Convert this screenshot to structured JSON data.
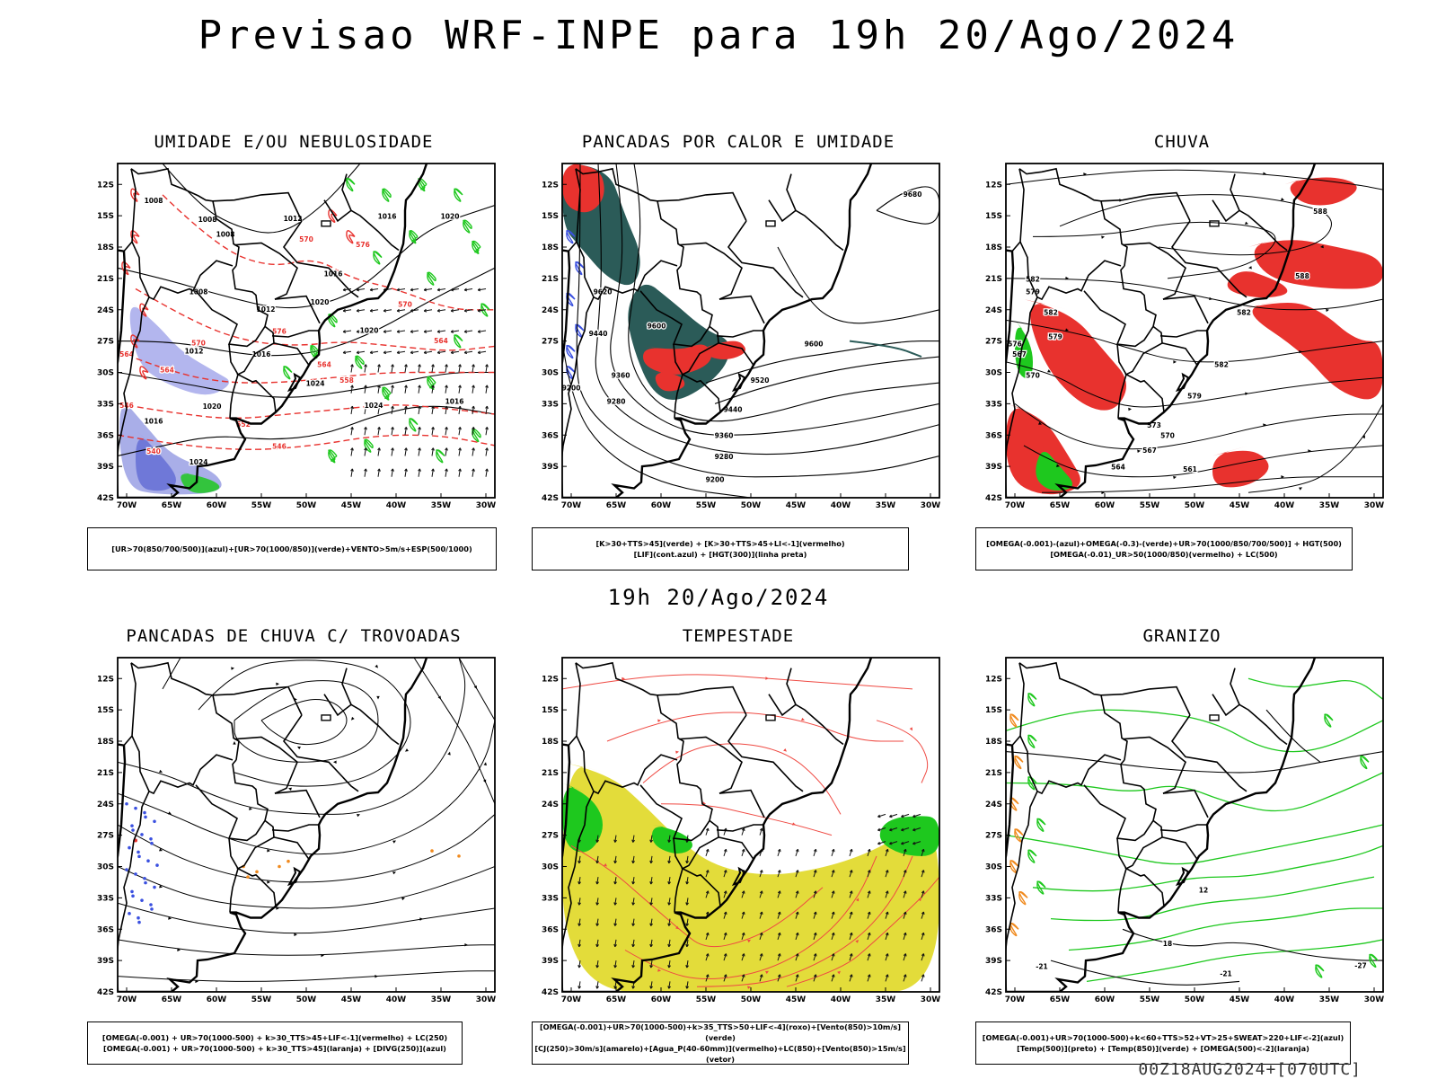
{
  "page": {
    "title": "Previsao WRF-INPE  para 19h 20/Ago/2024",
    "subtitle": "19h 20/Ago/2024",
    "footer": "00Z18AUG2024+[070UTC]"
  },
  "axes": {
    "lat_ticks": [
      "12S",
      "15S",
      "18S",
      "21S",
      "24S",
      "27S",
      "30S",
      "33S",
      "36S",
      "39S",
      "42S"
    ],
    "lon_ticks": [
      "70W",
      "65W",
      "60W",
      "55W",
      "50W",
      "45W",
      "40W",
      "35W",
      "30W"
    ],
    "lat_range": [
      -42,
      -10
    ],
    "lon_range": [
      -71,
      -29
    ]
  },
  "colors": {
    "red": "#e8322e",
    "green": "#1ec81e",
    "blue": "#3a50e0",
    "lightblue": "#a9aee8",
    "darkteal": "#2b5b58",
    "yellow": "#e3dc3a",
    "orange": "#f08a1e"
  },
  "panels": [
    {
      "title": "UMIDADE E/OU NEBULOSIDADE",
      "legend": [
        "[UR>70(850/700/500)](azul)+[UR>70(1000/850)](verde)+VENTO>5m/s+ESP(500/1000)"
      ],
      "contour_labels": [
        {
          "text": "1008",
          "lon": -67,
          "lat": -13.8
        },
        {
          "text": "1008",
          "lon": -61,
          "lat": -15.6
        },
        {
          "text": "1008",
          "lon": -59,
          "lat": -17
        },
        {
          "text": "1012",
          "lon": -51.5,
          "lat": -15.5
        },
        {
          "text": "1016",
          "lon": -41,
          "lat": -15.3
        },
        {
          "text": "1020",
          "lon": -34,
          "lat": -15.3
        },
        {
          "text": "1016",
          "lon": -47,
          "lat": -20.8
        },
        {
          "text": "1008",
          "lon": -62,
          "lat": -22.5
        },
        {
          "text": "1012",
          "lon": -54.5,
          "lat": -24.2
        },
        {
          "text": "1020",
          "lon": -48.5,
          "lat": -23.5
        },
        {
          "text": "1020",
          "lon": -43,
          "lat": -26.2
        },
        {
          "text": "1012",
          "lon": -62.5,
          "lat": -28.2
        },
        {
          "text": "1016",
          "lon": -55,
          "lat": -28.5
        },
        {
          "text": "1024",
          "lon": -49,
          "lat": -31.3
        },
        {
          "text": "1020",
          "lon": -60.5,
          "lat": -33.5
        },
        {
          "text": "1016",
          "lon": -67,
          "lat": -34.9
        },
        {
          "text": "1024",
          "lon": -42.5,
          "lat": -33.4
        },
        {
          "text": "1016",
          "lon": -33.5,
          "lat": -33
        },
        {
          "text": "1024",
          "lon": -62,
          "lat": -38.8
        }
      ],
      "thickness_labels": [
        {
          "text": "570",
          "lon": -50,
          "lat": -17.5
        },
        {
          "text": "576",
          "lon": -43.7,
          "lat": -18
        },
        {
          "text": "570",
          "lon": -39,
          "lat": -23.7
        },
        {
          "text": "576",
          "lon": -53,
          "lat": -26.3
        },
        {
          "text": "570",
          "lon": -62,
          "lat": -27.4
        },
        {
          "text": "564",
          "lon": -65.5,
          "lat": -30
        },
        {
          "text": "564",
          "lon": -48,
          "lat": -29.5
        },
        {
          "text": "558",
          "lon": -45.5,
          "lat": -31
        },
        {
          "text": "564",
          "lon": -35,
          "lat": -27.2
        },
        {
          "text": "552",
          "lon": -57,
          "lat": -35.2
        },
        {
          "text": "546",
          "lon": -53,
          "lat": -37.3
        },
        {
          "text": "540",
          "lon": -67,
          "lat": -37.8
        },
        {
          "text": "546",
          "lon": -70,
          "lat": -33.4
        },
        {
          "text": "564",
          "lon": -70,
          "lat": -28.5
        }
      ]
    },
    {
      "title": "PANCADAS POR CALOR E UMIDADE",
      "legend": [
        "[K>30+TTS>45](verde) + [K>30+TTS>45+LI<-1](vermelho)",
        "[LIF](cont.azul) + [HGT(300)](linha preta)"
      ],
      "contour_labels": [
        {
          "text": "9680",
          "lon": -32,
          "lat": -13.2
        },
        {
          "text": "9620",
          "lon": -66.5,
          "lat": -22.5
        },
        {
          "text": "9600",
          "lon": -60.5,
          "lat": -25.8
        },
        {
          "text": "9440",
          "lon": -67,
          "lat": -26.5
        },
        {
          "text": "9600",
          "lon": -43,
          "lat": -27.5
        },
        {
          "text": "9360",
          "lon": -64.5,
          "lat": -30.5
        },
        {
          "text": "9520",
          "lon": -49,
          "lat": -31
        },
        {
          "text": "9200",
          "lon": -70,
          "lat": -31.7
        },
        {
          "text": "9280",
          "lon": -65,
          "lat": -33
        },
        {
          "text": "9440",
          "lon": -52,
          "lat": -33.8
        },
        {
          "text": "9360",
          "lon": -53,
          "lat": -36.3
        },
        {
          "text": "9280",
          "lon": -53,
          "lat": -38.3
        },
        {
          "text": "9200",
          "lon": -54,
          "lat": -40.5
        }
      ]
    },
    {
      "title": "CHUVA",
      "legend": [
        "[OMEGA(-0.001)-(azul)+OMEGA(-0.3)-(verde)+UR>70(1000/850/700/500)] + HGT(500)",
        "[OMEGA(-0.01)_UR>50(1000/850)(vermelho) + LC(500)"
      ],
      "contour_labels": [
        {
          "text": "588",
          "lon": -36,
          "lat": -14.8
        },
        {
          "text": "588",
          "lon": -38,
          "lat": -21
        },
        {
          "text": "582",
          "lon": -68,
          "lat": -21.3
        },
        {
          "text": "582",
          "lon": -44.5,
          "lat": -24.5
        },
        {
          "text": "579",
          "lon": -68,
          "lat": -22.5
        },
        {
          "text": "582",
          "lon": -66,
          "lat": -24.5
        },
        {
          "text": "579",
          "lon": -65.5,
          "lat": -26.8
        },
        {
          "text": "576",
          "lon": -70,
          "lat": -27.5
        },
        {
          "text": "567",
          "lon": -69.5,
          "lat": -28.5
        },
        {
          "text": "570",
          "lon": -68,
          "lat": -30.5
        },
        {
          "text": "582",
          "lon": -47,
          "lat": -29.5
        },
        {
          "text": "579",
          "lon": -50,
          "lat": -32.5
        },
        {
          "text": "573",
          "lon": -54.5,
          "lat": -35.3
        },
        {
          "text": "570",
          "lon": -53,
          "lat": -36.3
        },
        {
          "text": "567",
          "lon": -55,
          "lat": -37.7
        },
        {
          "text": "564",
          "lon": -58.5,
          "lat": -39.3
        },
        {
          "text": "561",
          "lon": -50.5,
          "lat": -39.5
        }
      ]
    },
    {
      "title": "PANCADAS DE CHUVA C/ TROVOADAS",
      "legend": [
        "[OMEGA(-0.001) + UR>70(1000-500) + k>30_TTS>45+LIF<-1](vermelho) + LC(250)",
        "[OMEGA(-0.001) + UR>70(1000-500) + k>30_TTS>45](laranja) + [DIVG(250)](azul)"
      ],
      "contour_labels": []
    },
    {
      "title": "TEMPESTADE",
      "legend": [
        "[OMEGA(-0.001)+UR>70(1000-500)+k>35_TTS>50+LIF<-4](roxo)+[Vento(850)>10m/s](verde)",
        "[CJ(250)>30m/s](amarelo)+[Agua_P(40-60mm)](vermelho)+LC(850)+[Vento(850)>15m/s](vetor)"
      ],
      "contour_labels": []
    },
    {
      "title": "GRANIZO",
      "legend": [
        "[OMEGA(-0.001)+UR>70(1000-500)+k<60+TTS>52+VT>25+SWEAT>220+LIF<-2](azul)",
        "[Temp(500)](preto) + [Temp(850)](verde) + [OMEGA(500)<-2](laranja)"
      ],
      "contour_labels": [
        {
          "text": "12",
          "lon": -49,
          "lat": -32.5
        },
        {
          "text": "18",
          "lon": -53,
          "lat": -37.6
        },
        {
          "text": "-21",
          "lon": -67,
          "lat": -39.8
        },
        {
          "text": "-21",
          "lon": -46.5,
          "lat": -40.5
        },
        {
          "text": "-27",
          "lon": -31.5,
          "lat": -39.7
        }
      ]
    }
  ]
}
